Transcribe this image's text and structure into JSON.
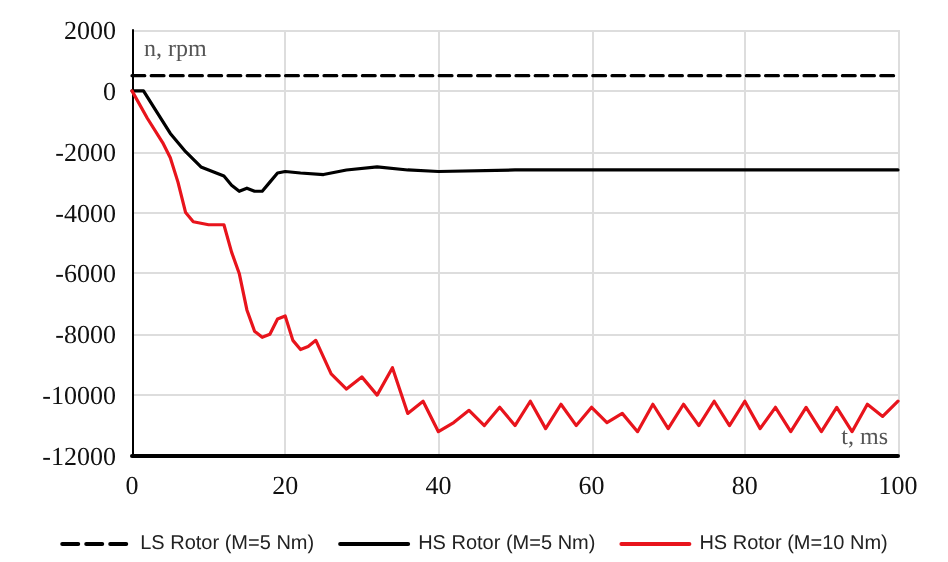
{
  "chart_data": {
    "type": "line",
    "xlim": [
      0,
      100
    ],
    "xticks": [
      0,
      20,
      40,
      60,
      80,
      100
    ],
    "ylim": [
      -12000,
      2000
    ],
    "yticks": [
      -12000,
      -10000,
      -8000,
      -6000,
      -4000,
      -2000,
      0,
      2000
    ],
    "grid": true,
    "legend": "bottom",
    "marker": "none",
    "annotations": [
      "n, rpm",
      "t, ms"
    ],
    "series": [
      {
        "name": "LS Rotor (M=5 Nm)",
        "color": "#000000",
        "line_style": "dashed",
        "x": [
          0,
          100
        ],
        "values": [
          500,
          500
        ]
      },
      {
        "name": "HS Rotor (M=5 Nm)",
        "color": "#000000",
        "line_style": "solid",
        "x": [
          0,
          1.5,
          3,
          5,
          7,
          9,
          11,
          12,
          13,
          14,
          15,
          16,
          17,
          18,
          19,
          20,
          22,
          25,
          28,
          32,
          36,
          40,
          50,
          60,
          70,
          80,
          90,
          100
        ],
        "values": [
          0,
          0,
          -600,
          -1400,
          -2000,
          -2500,
          -2700,
          -2800,
          -3100,
          -3300,
          -3200,
          -3300,
          -3300,
          -3000,
          -2700,
          -2650,
          -2700,
          -2750,
          -2600,
          -2500,
          -2600,
          -2650,
          -2600,
          -2600,
          -2600,
          -2600,
          -2600,
          -2600
        ]
      },
      {
        "name": "HS Rotor (M=10 Nm)",
        "color": "#e8141c",
        "line_style": "solid",
        "x": [
          0,
          2,
          4,
          5,
          6,
          7,
          8,
          10,
          12,
          13,
          14,
          15,
          16,
          17,
          18,
          19,
          20,
          21,
          22,
          23,
          24,
          26,
          28,
          30,
          32,
          34,
          36,
          38,
          40,
          42,
          44,
          46,
          48,
          50,
          52,
          54,
          56,
          58,
          60,
          62,
          64,
          66,
          68,
          70,
          72,
          74,
          76,
          78,
          80,
          82,
          84,
          86,
          88,
          90,
          92,
          94,
          96,
          98,
          100
        ],
        "values": [
          0,
          -900,
          -1700,
          -2200,
          -3000,
          -4000,
          -4300,
          -4400,
          -4400,
          -5300,
          -6000,
          -7200,
          -7900,
          -8100,
          -8000,
          -7500,
          -7400,
          -8200,
          -8500,
          -8400,
          -8200,
          -9300,
          -9800,
          -9400,
          -10000,
          -9100,
          -10600,
          -10200,
          -11200,
          -10900,
          -10500,
          -11000,
          -10400,
          -11000,
          -10200,
          -11100,
          -10300,
          -11000,
          -10400,
          -10900,
          -10600,
          -11200,
          -10300,
          -11100,
          -10300,
          -11000,
          -10200,
          -11000,
          -10200,
          -11100,
          -10400,
          -11200,
          -10400,
          -11200,
          -10400,
          -11200,
          -10300,
          -10700,
          -10200
        ]
      }
    ]
  }
}
